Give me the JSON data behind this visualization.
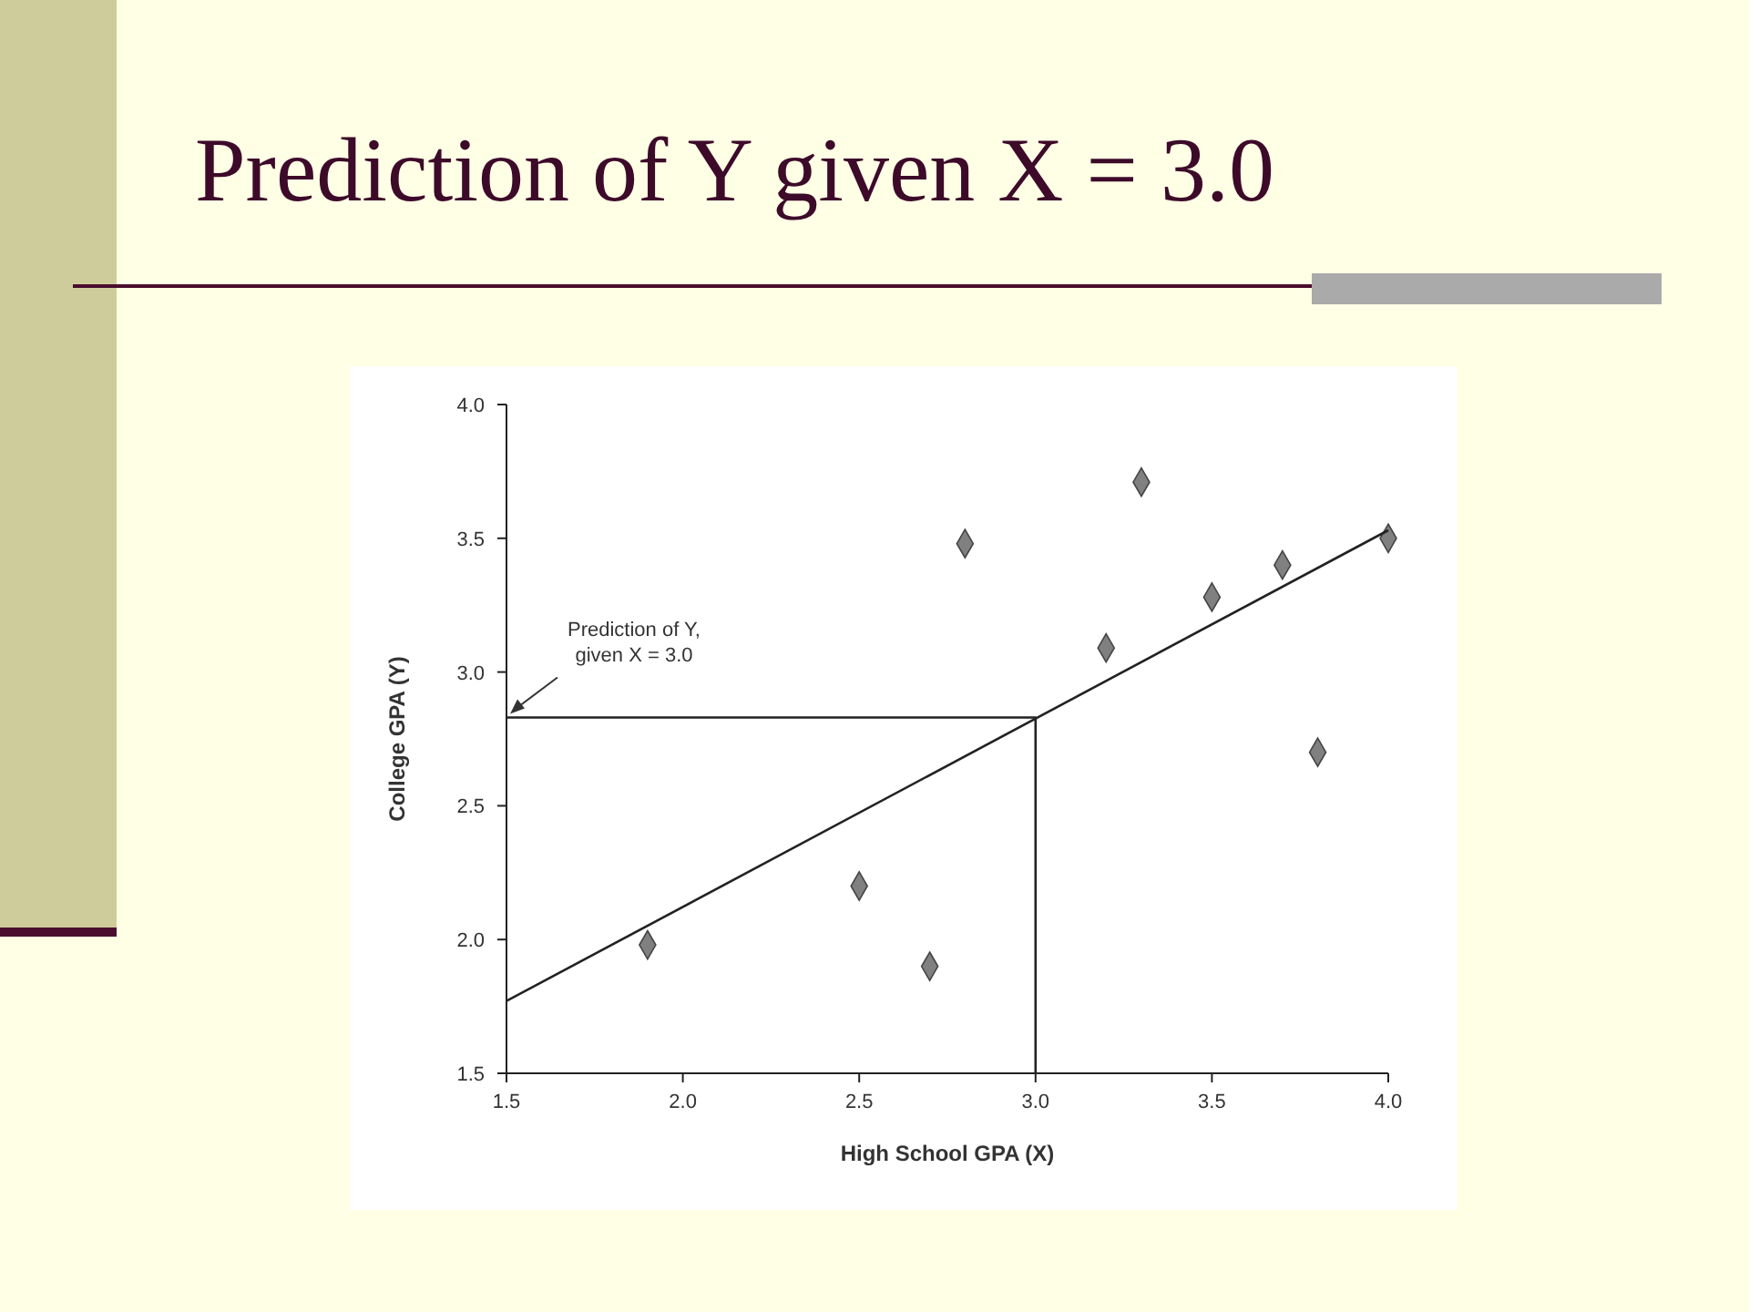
{
  "chart_data": {
    "type": "scatter",
    "title": "Prediction of Y given X = 3.0",
    "xlabel": "High School GPA (X)",
    "ylabel": "College GPA (Y)",
    "xlim": [
      1.5,
      4.0
    ],
    "ylim": [
      1.5,
      4.0
    ],
    "xticks": [
      {
        "value": 1.5,
        "label": "1.5"
      },
      {
        "value": 2,
        "label": "2.0"
      },
      {
        "value": 2.5,
        "label": "2.5"
      },
      {
        "value": 3,
        "label": "3.0"
      },
      {
        "value": 3.5,
        "label": "3.5"
      },
      {
        "value": 4,
        "label": "4.0"
      }
    ],
    "yticks": [
      {
        "value": 1.5,
        "label": "1.5"
      },
      {
        "value": 2,
        "label": "2.0"
      },
      {
        "value": 2.5,
        "label": "2.5"
      },
      {
        "value": 3,
        "label": "3.0"
      },
      {
        "value": 3.5,
        "label": "3.5"
      },
      {
        "value": 4,
        "label": "4.0"
      }
    ],
    "series": [
      {
        "color": "#808080",
        "marker": "diamond",
        "x": [
          1.9,
          2.5,
          2.7,
          2.8,
          3.2,
          3.3,
          3.5,
          3.7,
          3.8,
          4.0
        ],
        "values": [
          1.98,
          2.2,
          1.9,
          3.48,
          3.09,
          3.71,
          3.28,
          3.4,
          2.7,
          3.5
        ]
      },
      {
        "type": "line",
        "color": "#222222",
        "x": [
          1.5,
          4.0
        ],
        "values": [
          1.77,
          3.53
        ]
      },
      {
        "type": "line",
        "color": "#222222",
        "x": [
          1.5,
          3.0,
          3.0
        ],
        "values": [
          2.83,
          2.83,
          1.5
        ]
      }
    ],
    "annotations": [
      {
        "text": "Prediction of Y,\ngiven X = 3.0",
        "x": 1.5,
        "y": 2.83
      }
    ]
  }
}
